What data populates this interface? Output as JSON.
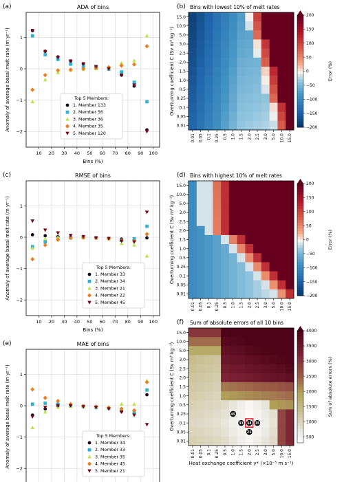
{
  "figure": {
    "x_ticks": [
      "10",
      "20",
      "30",
      "40",
      "50",
      "60",
      "70",
      "80",
      "90",
      "100"
    ],
    "C_labels": [
      "15.0",
      "10.0",
      "5.0",
      "3.0",
      "2.5",
      "2.0",
      "1.5",
      "1.0",
      "0.5",
      "0.25",
      "0.1",
      "0.05",
      "0.01"
    ],
    "G_labels": [
      "0.01",
      "0.05",
      "0.1",
      "0.25",
      "0.5",
      "1.0",
      "1.5",
      "2.0",
      "2.5",
      "3.0",
      "5.0",
      "10.0",
      "15.0"
    ],
    "marker_colors": [
      "#1b0620",
      "#2fb4d8",
      "#b5e84a",
      "#f07c1e",
      "#7a0a16"
    ]
  },
  "chart_data": [
    {
      "type": "scatter",
      "panel": "(a)",
      "title": "ADA of bins",
      "xlabel": "Bins (%)",
      "ylabel": "Anomaly of average basal melt rate (m yr⁻¹)",
      "ylim": [
        -2.5,
        1.8
      ],
      "yticks": [
        "1",
        "0",
        "−1",
        "−2"
      ],
      "grid": true,
      "legend_title": "Top 5 Members:",
      "legend_position": "lower-center",
      "x": [
        5,
        15,
        25,
        35,
        45,
        55,
        65,
        75,
        85,
        95
      ],
      "series": [
        {
          "name": "1. Member 133",
          "values": [
            1.22,
            0.56,
            0.38,
            0.25,
            0.16,
            0.07,
            0.0,
            -0.2,
            -0.55,
            -1.95
          ]
        },
        {
          "name": "2. Member 56",
          "values": [
            1.05,
            0.45,
            0.3,
            0.15,
            0.08,
            0.03,
            -0.01,
            -0.1,
            -0.43,
            -1.05
          ]
        },
        {
          "name": "3. Member 36",
          "values": [
            -1.05,
            -0.35,
            -0.12,
            -0.04,
            -0.02,
            0.0,
            0.03,
            0.18,
            0.26,
            1.05
          ]
        },
        {
          "name": "4. Member 35",
          "values": [
            -0.67,
            -0.2,
            -0.05,
            -0.03,
            0.0,
            0.03,
            0.05,
            0.1,
            0.14,
            0.72
          ]
        },
        {
          "name": "5. Member 120",
          "values": [
            1.22,
            0.55,
            0.36,
            0.25,
            0.16,
            0.07,
            0.0,
            -0.2,
            -0.52,
            -2.0
          ]
        }
      ]
    },
    {
      "type": "heatmap",
      "panel": "(b)",
      "title": "Bins with lowest 10% of melt rates",
      "xlabel": "",
      "ylabel": "Overturning coefficient C (Sv m³ kg⁻¹)",
      "colorbar_label": "Error (%)",
      "colorbar_ticks": [
        "200",
        "150",
        "100",
        "50",
        "0",
        "−50",
        "−100",
        "−150",
        "−200"
      ],
      "zlim": [
        -200,
        200
      ]
    },
    {
      "type": "scatter",
      "panel": "(c)",
      "title": "RMSE of bins",
      "xlabel": "Bins (%)",
      "ylabel": "Anomaly of average basal melt rate (m yr⁻¹)",
      "ylim": [
        -2.5,
        1.8
      ],
      "yticks": [
        "1",
        "0",
        "−1",
        "−2"
      ],
      "grid": true,
      "legend_title": "Top 5 Members:",
      "legend_position": "lower-right",
      "x": [
        5,
        15,
        25,
        35,
        45,
        55,
        65,
        75,
        85,
        95
      ],
      "series": [
        {
          "name": "1. Member 33",
          "values": [
            0.08,
            0.05,
            0.02,
            0.01,
            0.0,
            -0.02,
            -0.04,
            -0.06,
            -0.1,
            -0.02
          ]
        },
        {
          "name": "2. Member 34",
          "values": [
            -0.3,
            -0.15,
            -0.05,
            -0.02,
            -0.01,
            -0.02,
            -0.04,
            -0.1,
            -0.05,
            0.35
          ]
        },
        {
          "name": "3. Member 21",
          "values": [
            -0.35,
            -0.05,
            0.0,
            0.0,
            -0.01,
            -0.02,
            -0.05,
            -0.2,
            -0.25,
            -0.6
          ]
        },
        {
          "name": "4. Member 22",
          "values": [
            -0.7,
            -0.25,
            -0.08,
            -0.02,
            -0.01,
            -0.02,
            -0.04,
            -0.1,
            -0.12,
            0.1
          ]
        },
        {
          "name": "5. Member 45",
          "values": [
            0.52,
            0.23,
            0.14,
            0.06,
            0.02,
            -0.02,
            -0.04,
            -0.12,
            -0.15,
            0.8
          ]
        }
      ]
    },
    {
      "type": "heatmap",
      "panel": "(d)",
      "title": "Bins with highest 10% of melt rates",
      "xlabel": "",
      "ylabel": "Overturning coefficient C (Sv m³ kg⁻¹)",
      "colorbar_label": "Error (%)",
      "colorbar_ticks": [
        "200",
        "150",
        "100",
        "50",
        "0",
        "−50",
        "−100",
        "−150",
        "−200"
      ],
      "zlim": [
        -200,
        200
      ]
    },
    {
      "type": "scatter",
      "panel": "(e)",
      "title": "MAE of bins",
      "xlabel": "Bins (%)",
      "ylabel": "Anomaly of average basal melt rate (m yr⁻¹)",
      "ylim": [
        -2.5,
        1.8
      ],
      "yticks": [
        "1",
        "0",
        "−1",
        "−2"
      ],
      "grid": true,
      "legend_title": "Top 5 Members:",
      "legend_position": "lower-right",
      "x": [
        5,
        15,
        25,
        35,
        45,
        55,
        65,
        75,
        85,
        95
      ],
      "series": [
        {
          "name": "1. Member 34",
          "values": [
            -0.3,
            -0.1,
            0.0,
            0.0,
            -0.03,
            -0.05,
            -0.08,
            -0.18,
            -0.25,
            0.35
          ]
        },
        {
          "name": "2. Member 33",
          "values": [
            0.05,
            0.08,
            0.05,
            0.02,
            -0.02,
            -0.05,
            -0.08,
            -0.12,
            -0.2,
            0.5
          ]
        },
        {
          "name": "3. Member 35",
          "values": [
            -0.7,
            -0.2,
            -0.05,
            -0.02,
            -0.02,
            -0.03,
            -0.05,
            0.05,
            0.05,
            0.8
          ]
        },
        {
          "name": "4. Member 45",
          "values": [
            0.52,
            0.25,
            0.15,
            0.05,
            -0.01,
            -0.03,
            -0.06,
            -0.1,
            -0.15,
            0.75
          ]
        },
        {
          "name": "5. Member 21",
          "values": [
            -0.35,
            -0.05,
            0.0,
            0.0,
            -0.03,
            -0.05,
            -0.1,
            -0.2,
            -0.3,
            -0.6
          ]
        }
      ]
    },
    {
      "type": "heatmap",
      "panel": "(f)",
      "title": "Sum of absolute errors of all 10 bins",
      "xlabel": "Heat exchange coefficient γ* (×10⁻⁵ m s⁻¹)",
      "ylabel": "Overturning coefficient C (Sv m³ kg⁻¹)",
      "colorbar_label": "Sum of absolute errors (%)",
      "colorbar_ticks": [
        "4000",
        "3500",
        "3000",
        "2500",
        "2000",
        "1500",
        "1000",
        "500"
      ],
      "zlim": [
        300,
        4000
      ],
      "annotations": [
        {
          "label": "45",
          "c": "0.25",
          "g": "1.0"
        },
        {
          "label": "33",
          "c": "0.1",
          "g": "1.5"
        },
        {
          "label": "34",
          "c": "0.1",
          "g": "2.0"
        },
        {
          "label": "35",
          "c": "0.1",
          "g": "2.5"
        },
        {
          "label": "21",
          "c": "0.05",
          "g": "2.0"
        }
      ],
      "highlight": {
        "c": "0.1",
        "g": "2.0"
      }
    }
  ]
}
